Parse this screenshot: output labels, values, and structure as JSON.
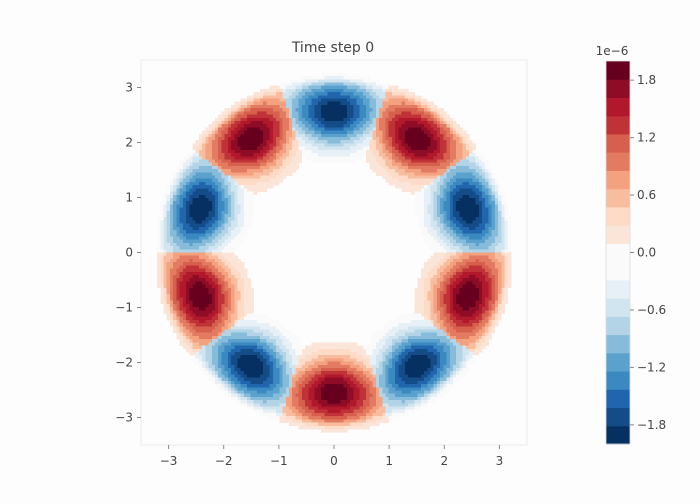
{
  "chart_data": {
    "type": "heatmap",
    "title": "Time step 0",
    "xlabel": "",
    "ylabel": "",
    "xlim": [
      -3.5,
      3.5
    ],
    "ylim": [
      -3.5,
      3.5
    ],
    "xticks": [
      -3,
      -2,
      -1,
      0,
      1,
      2,
      3
    ],
    "yticks": [
      -3,
      -2,
      -1,
      0,
      1,
      2,
      3
    ],
    "xtick_labels": [
      "−3",
      "−2",
      "−1",
      "0",
      "1",
      "2",
      "3"
    ],
    "ytick_labels": [
      "−3",
      "−2",
      "−1",
      "0",
      "1",
      "2",
      "3"
    ],
    "grid": false,
    "colormap": "RdBu_r",
    "colorbar": {
      "exponent_label": "1e−6",
      "vmin": -2.0,
      "vmax": 2.0,
      "levels": 21,
      "ticks": [
        1.8,
        1.2,
        0.6,
        0.0,
        -0.6,
        -1.2,
        -1.8
      ],
      "tick_labels": [
        "1.8",
        "1.2",
        "0.6",
        "0.0",
        "−0.6",
        "−1.2",
        "−1.8"
      ],
      "colors": [
        "#053061",
        "#134c87",
        "#2166ac",
        "#3a89c0",
        "#5ba1cd",
        "#86bcd9",
        "#b3d3e7",
        "#d1e5f0",
        "#e7f0f6",
        "#fafafa",
        "#fafafa",
        "#fbe5d9",
        "#fddbc7",
        "#f8bc9f",
        "#f3a17f",
        "#e27b62",
        "#d6604d",
        "#bf3338",
        "#b2182b",
        "#8e0c25",
        "#67001f"
      ]
    },
    "lobes": [
      {
        "angle_deg": 90,
        "peak": -2.0
      },
      {
        "angle_deg": 54,
        "peak": 2.0
      },
      {
        "angle_deg": 18,
        "peak": -2.0
      },
      {
        "angle_deg": -18,
        "peak": 2.0
      },
      {
        "angle_deg": -54,
        "peak": -2.0
      },
      {
        "angle_deg": -90,
        "peak": 2.0
      },
      {
        "angle_deg": -126,
        "peak": -2.0
      },
      {
        "angle_deg": -162,
        "peak": 2.0
      },
      {
        "angle_deg": 162,
        "peak": -2.0
      },
      {
        "angle_deg": 126,
        "peak": 2.0
      }
    ],
    "lobe_center_radius": 2.55,
    "ring_inner_radius": 1.45,
    "ring_outer_radius": 3.3
  }
}
